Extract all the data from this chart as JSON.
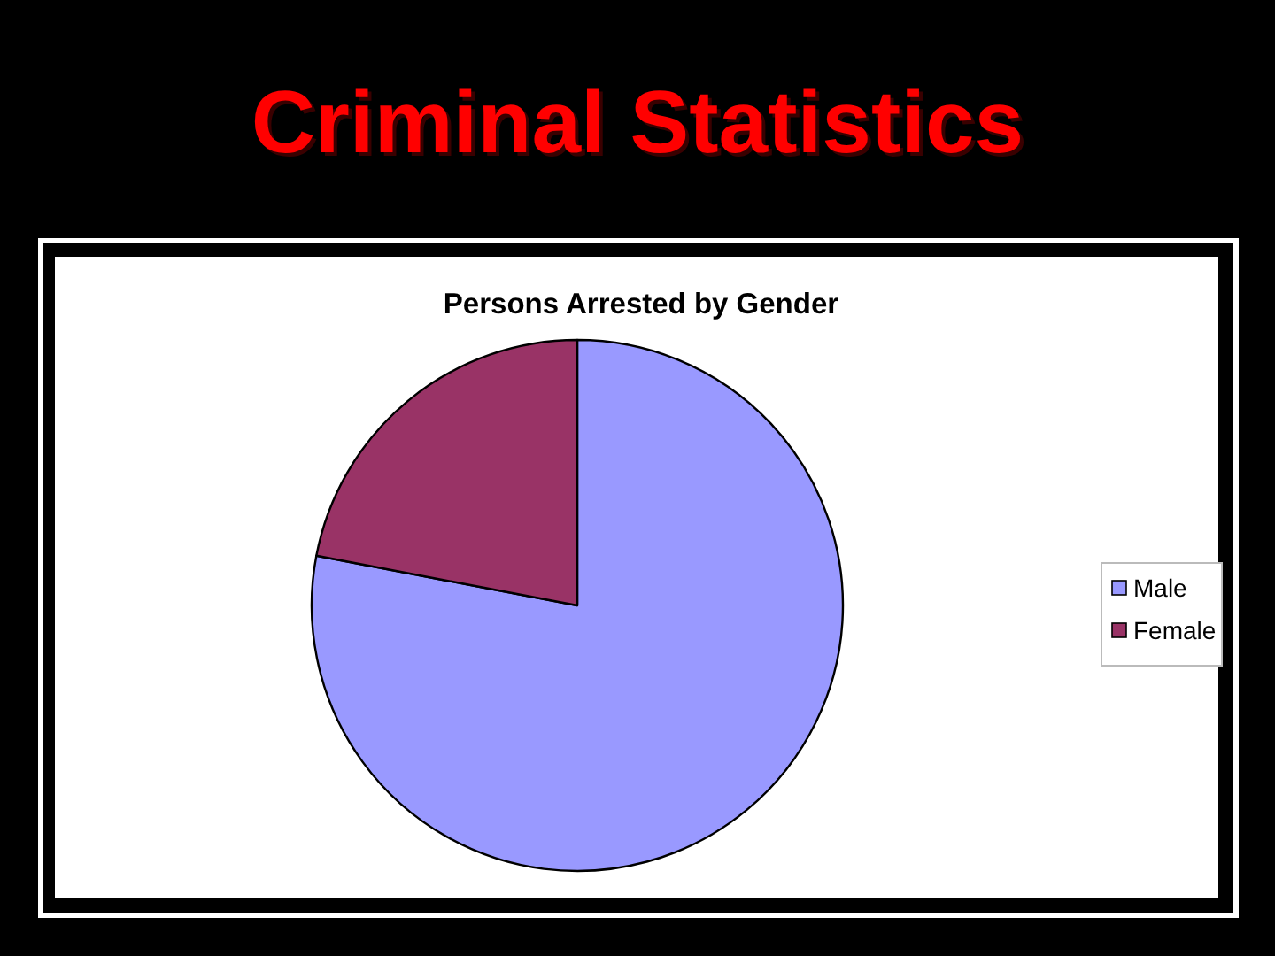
{
  "chart_data": {
    "type": "pie",
    "title": "Criminal Statistics",
    "subtitle": "Persons Arrested by Gender",
    "categories": [
      "Male",
      "Female"
    ],
    "values": [
      78,
      22
    ],
    "colors": [
      "#9999ff",
      "#993366"
    ],
    "legend": "right"
  }
}
